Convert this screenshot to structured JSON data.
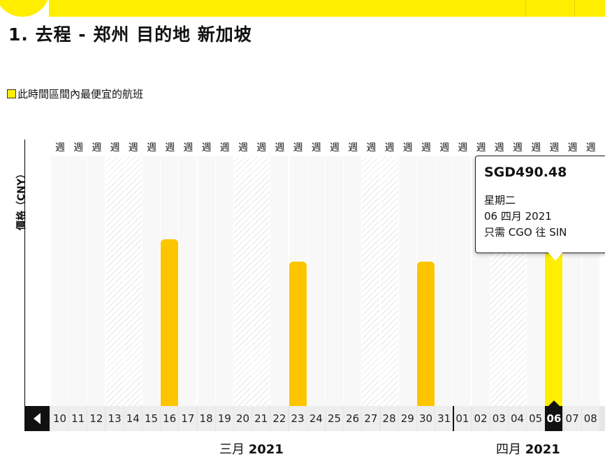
{
  "title": "1. 去程 - 郑州 目的地 新加坡",
  "legend": {
    "label": "此時間區間內最便宜的航班",
    "color": "#ffee00"
  },
  "chart_data": {
    "type": "bar",
    "ylabel": "價格（CNY）",
    "weekday_label": "週",
    "categories": [
      "10",
      "11",
      "12",
      "13",
      "14",
      "15",
      "16",
      "17",
      "18",
      "19",
      "20",
      "21",
      "22",
      "23",
      "24",
      "25",
      "26",
      "27",
      "28",
      "29",
      "30",
      "31",
      "01",
      "02",
      "03",
      "04",
      "05",
      "06",
      "07",
      "08"
    ],
    "values": [
      null,
      null,
      null,
      null,
      null,
      null,
      520,
      null,
      null,
      null,
      null,
      null,
      null,
      450,
      null,
      null,
      null,
      null,
      null,
      null,
      450,
      null,
      null,
      null,
      null,
      null,
      null,
      490.48,
      null,
      null
    ],
    "ylim": [
      0,
      780
    ],
    "selected_index": 27,
    "bar_color": "#fcc500",
    "selected_color": "#ffee00",
    "hatched_columns": [
      "13",
      "14",
      "20",
      "21",
      "27",
      "28",
      "03",
      "04"
    ],
    "months": [
      {
        "name": "三月",
        "year": "2021"
      },
      {
        "name": "四月",
        "year": "2021"
      }
    ]
  },
  "tooltip": {
    "price": "SGD490.48",
    "weekday": "星期二",
    "date": "06 四月 2021",
    "route": "只需 CGO 往 SIN"
  },
  "icons": {
    "prev": "chevron-left-icon"
  }
}
